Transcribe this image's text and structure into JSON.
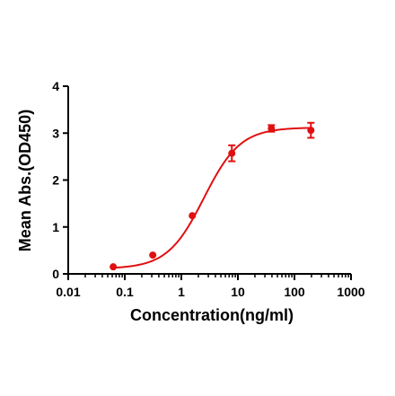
{
  "chart_data": {
    "type": "scatter",
    "title": "",
    "xlabel": "Concentration(ng/ml)",
    "ylabel": "Mean Abs.(OD450)",
    "x_scale": "log",
    "xlim": [
      0.01,
      1000
    ],
    "ylim": [
      0,
      4
    ],
    "x_ticks": [
      "0.01",
      "0.1",
      "1",
      "10",
      "100",
      "1000"
    ],
    "y_ticks": [
      "0",
      "1",
      "2",
      "3",
      "4"
    ],
    "grid": false,
    "legend": "none",
    "color": "#e01010",
    "series": [
      {
        "points": [
          {
            "x": 0.0625,
            "y": 0.15,
            "err": 0.0
          },
          {
            "x": 0.3125,
            "y": 0.4,
            "err": 0.0
          },
          {
            "x": 1.5625,
            "y": 1.24,
            "err": 0.0
          },
          {
            "x": 7.8125,
            "y": 2.57,
            "err": 0.17
          },
          {
            "x": 39.0625,
            "y": 3.1,
            "err": 0.07
          },
          {
            "x": 195.3125,
            "y": 3.06,
            "err": 0.16
          }
        ],
        "fit_curve": "sigmoidal"
      }
    ]
  }
}
